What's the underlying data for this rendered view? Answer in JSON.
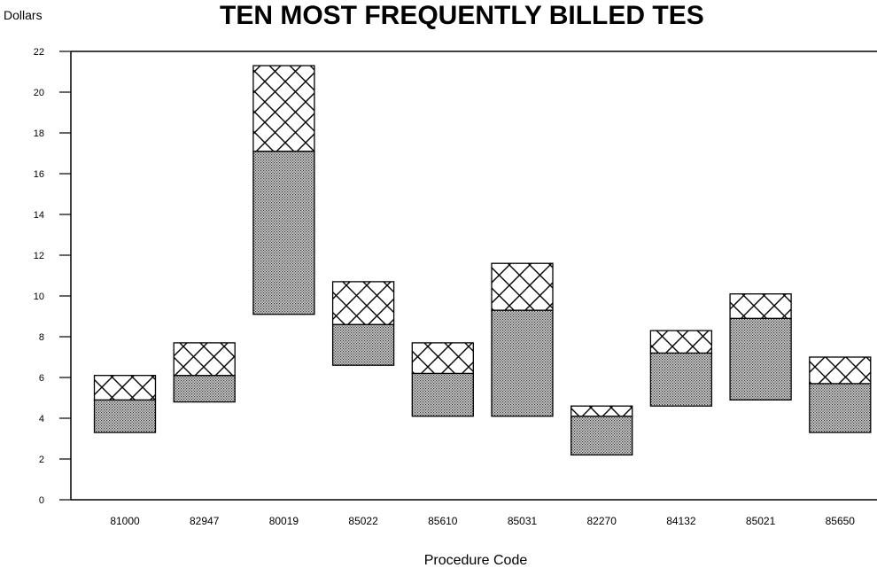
{
  "chart_data": {
    "type": "bar",
    "title": "TEN MOST FREQUENTLY BILLED TES",
    "ylabel": "Dollars",
    "xlabel": "Procedure Code",
    "ylim": [
      0,
      22
    ],
    "yticks": [
      "0",
      "2",
      "4",
      "6",
      "8",
      "10",
      "12",
      "14",
      "16",
      "18",
      "20",
      "22"
    ],
    "categories": [
      "81000",
      "82947",
      "80019",
      "85022",
      "85610",
      "85031",
      "82270",
      "84132",
      "85021",
      "85650"
    ],
    "series": [
      {
        "fill": "dotted",
        "low": [
          3.3,
          4.8,
          9.1,
          6.6,
          4.1,
          4.1,
          2.2,
          4.6,
          4.9,
          3.3
        ],
        "high": [
          4.9,
          6.1,
          17.1,
          8.6,
          6.2,
          9.3,
          4.1,
          7.2,
          8.9,
          5.7
        ]
      },
      {
        "fill": "crosshatch",
        "low": [
          4.9,
          6.1,
          17.1,
          8.6,
          6.2,
          9.3,
          4.1,
          7.2,
          8.9,
          5.7
        ],
        "high": [
          6.1,
          7.7,
          21.3,
          10.7,
          7.7,
          11.6,
          4.6,
          8.3,
          10.1,
          7.0
        ]
      }
    ],
    "grid": false,
    "legend": "none"
  }
}
